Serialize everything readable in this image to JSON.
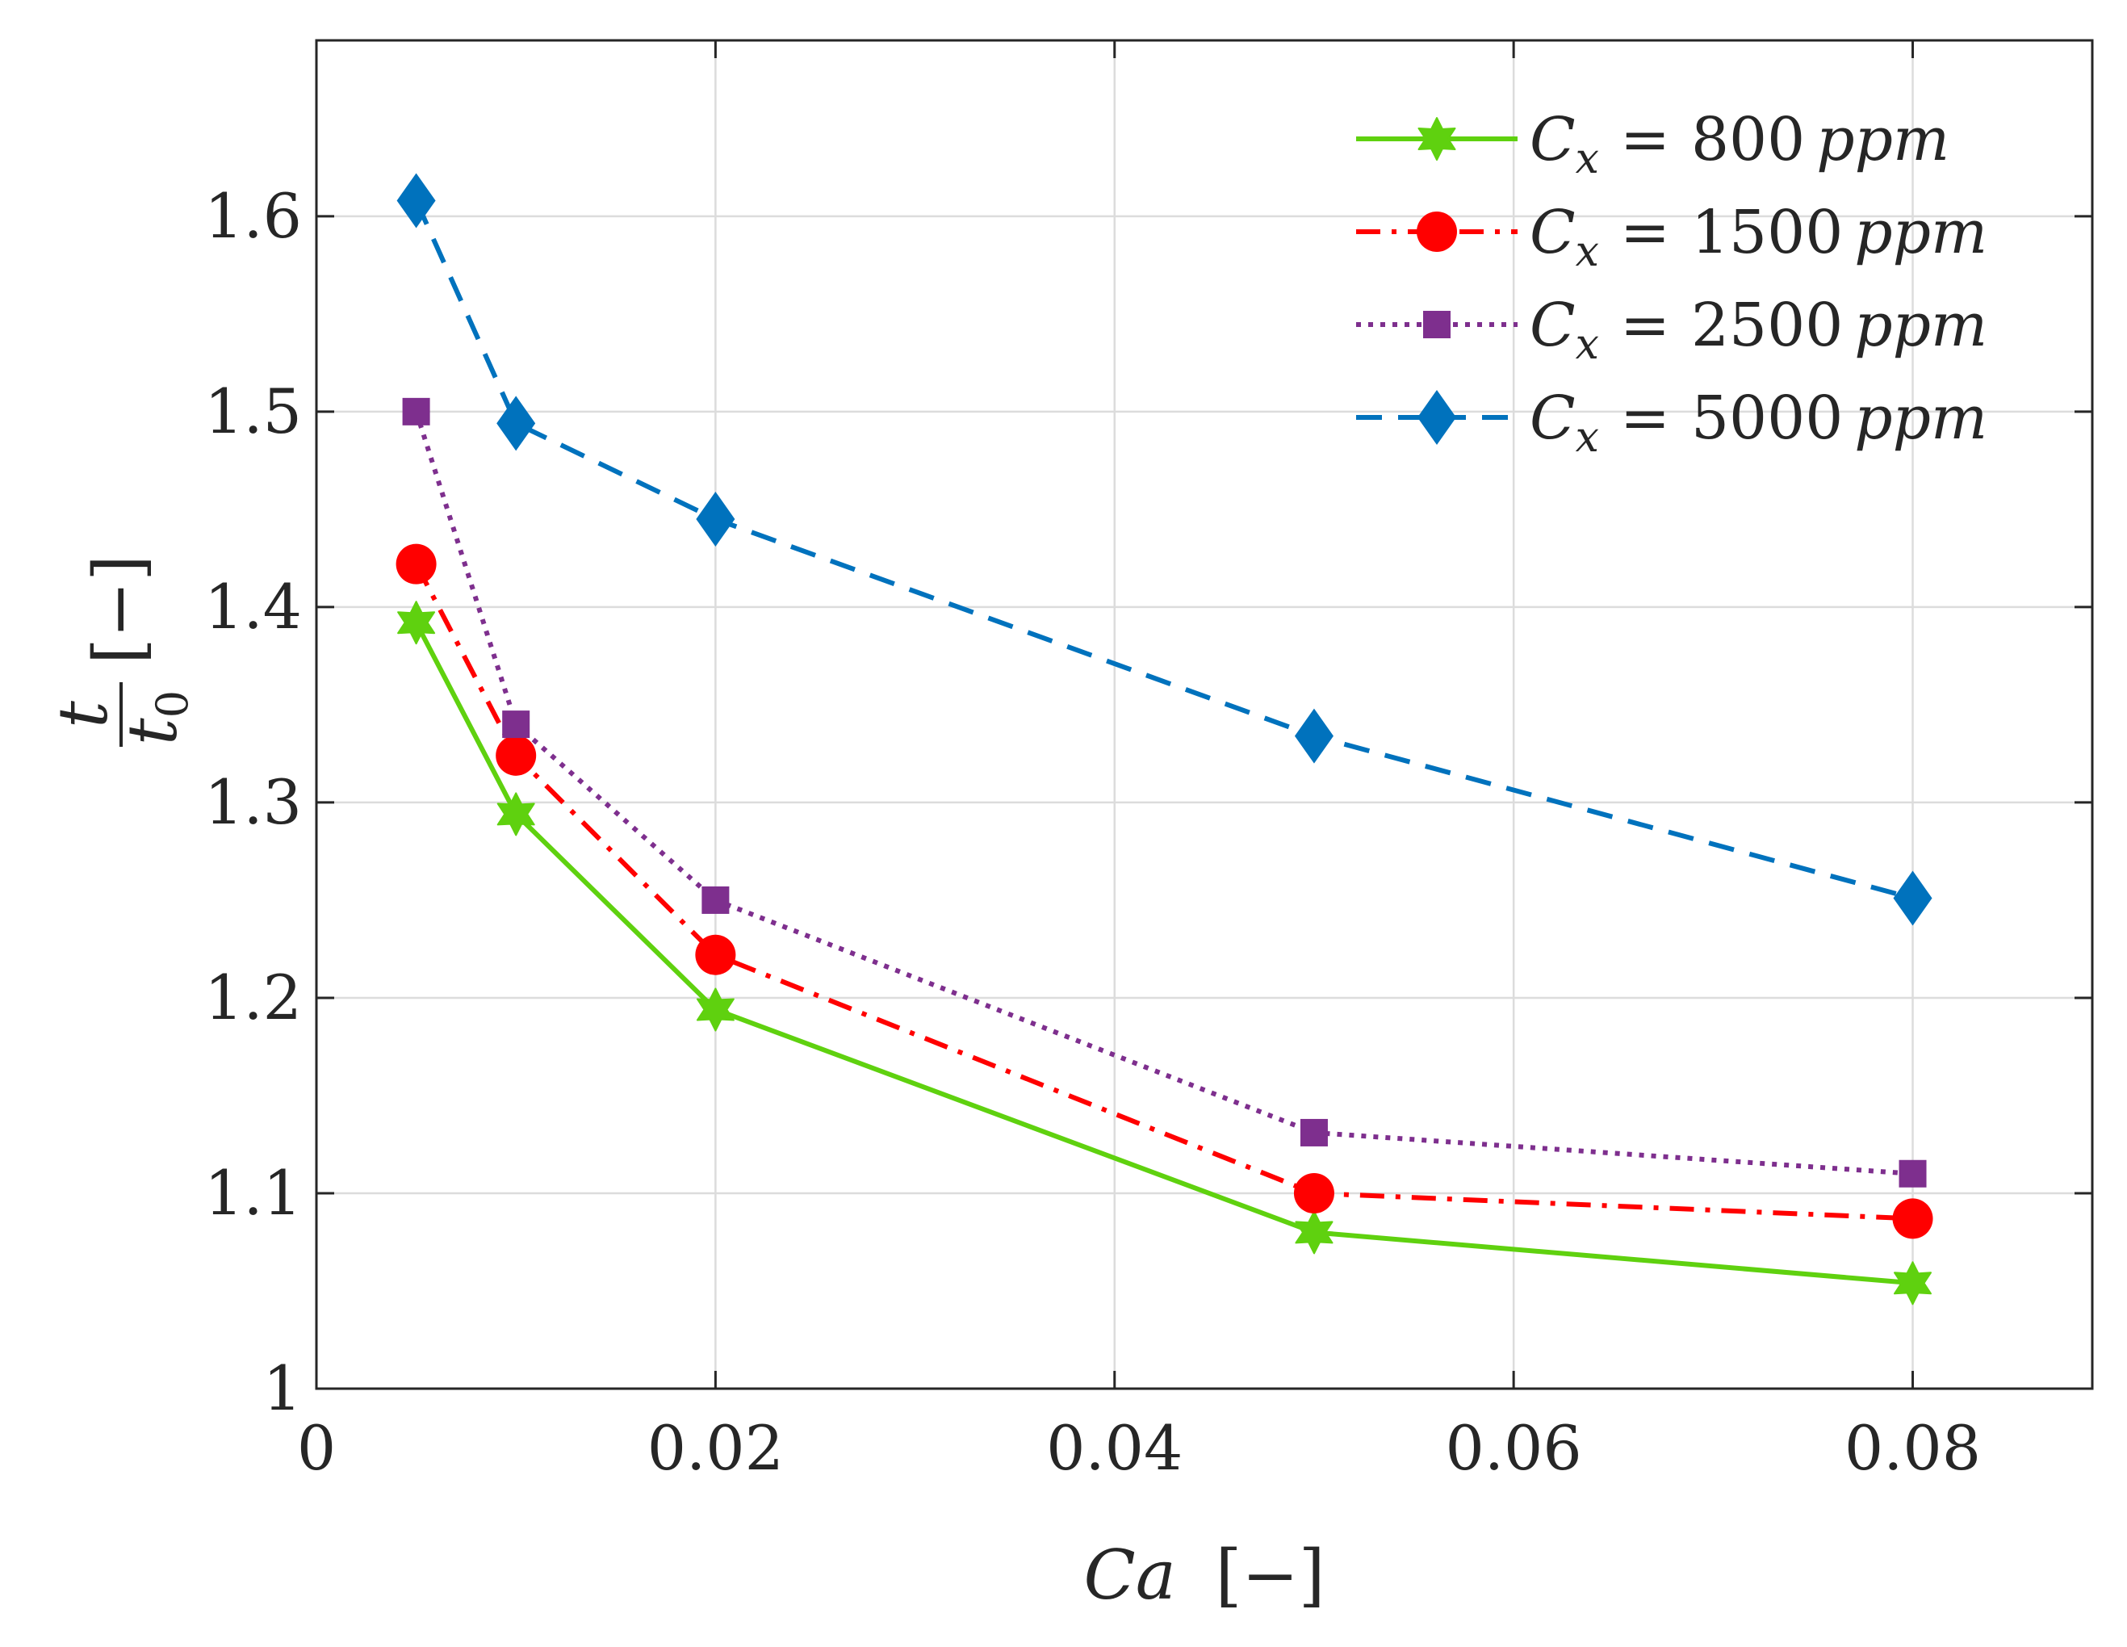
{
  "chart_data": {
    "type": "line",
    "title": "",
    "xlabel": {
      "var": "Ca",
      "unit": "[−]"
    },
    "ylabel": {
      "num": "t",
      "den": "t",
      "den_sub": "0",
      "unit": "[−]"
    },
    "xlim": [
      0,
      0.089
    ],
    "ylim": [
      1,
      1.69
    ],
    "grid": true,
    "legend_position": "top-right",
    "x_ticks": [
      0,
      0.02,
      0.04,
      0.06,
      0.08
    ],
    "x_tick_labels": [
      "0",
      "0.02",
      "0.04",
      "0.06",
      "0.08"
    ],
    "y_ticks": [
      1,
      1.1,
      1.2,
      1.3,
      1.4,
      1.5,
      1.6
    ],
    "y_tick_labels": [
      "1",
      "1.1",
      "1.2",
      "1.3",
      "1.4",
      "1.5",
      "1.6"
    ],
    "x": [
      0.005,
      0.01,
      0.02,
      0.05,
      0.08
    ],
    "series": [
      {
        "name": "C_x = 800 ppm",
        "legend_value": "800",
        "values": [
          1.392,
          1.294,
          1.194,
          1.08,
          1.054
        ],
        "color": "#5fd10f",
        "dash": "solid",
        "marker": "star"
      },
      {
        "name": "C_x = 1500 ppm",
        "legend_value": "1500",
        "values": [
          1.422,
          1.324,
          1.222,
          1.1,
          1.087
        ],
        "color": "#ff0000",
        "dash": "dashdot",
        "marker": "circle"
      },
      {
        "name": "C_x = 2500 ppm",
        "legend_value": "2500",
        "values": [
          1.5,
          1.34,
          1.25,
          1.131,
          1.11
        ],
        "color": "#7e2f8e",
        "dash": "dotted",
        "marker": "square"
      },
      {
        "name": "C_x = 5000 ppm",
        "legend_value": "5000",
        "values": [
          1.608,
          1.494,
          1.445,
          1.334,
          1.251
        ],
        "color": "#0072bd",
        "dash": "dashed",
        "marker": "diamond"
      }
    ],
    "legend_var": "C",
    "legend_sub": "x",
    "legend_eq": "=",
    "legend_unit": "ppm"
  }
}
